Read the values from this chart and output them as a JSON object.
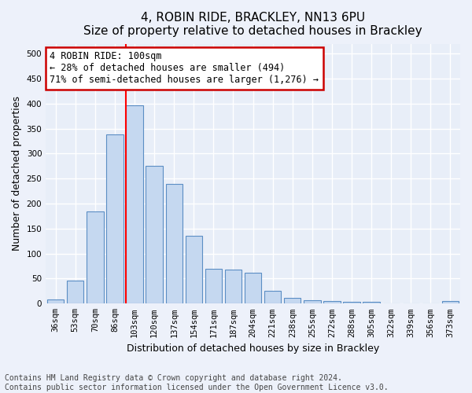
{
  "title": "4, ROBIN RIDE, BRACKLEY, NN13 6PU",
  "subtitle": "Size of property relative to detached houses in Brackley",
  "xlabel": "Distribution of detached houses by size in Brackley",
  "ylabel": "Number of detached properties",
  "categories": [
    "36sqm",
    "53sqm",
    "70sqm",
    "86sqm",
    "103sqm",
    "120sqm",
    "137sqm",
    "154sqm",
    "171sqm",
    "187sqm",
    "204sqm",
    "221sqm",
    "238sqm",
    "255sqm",
    "272sqm",
    "288sqm",
    "305sqm",
    "322sqm",
    "339sqm",
    "356sqm",
    "373sqm"
  ],
  "values": [
    9,
    46,
    185,
    338,
    397,
    275,
    239,
    136,
    69,
    68,
    62,
    25,
    11,
    7,
    5,
    4,
    4,
    0,
    0,
    0,
    5
  ],
  "bar_color": "#c5d8f0",
  "bar_edge_color": "#5b8ec4",
  "red_line_bar_index": 4,
  "annotation_text": "4 ROBIN RIDE: 100sqm\n← 28% of detached houses are smaller (494)\n71% of semi-detached houses are larger (1,276) →",
  "annotation_box_facecolor": "#ffffff",
  "annotation_box_edgecolor": "#cc0000",
  "ylim": [
    0,
    520
  ],
  "yticks": [
    0,
    50,
    100,
    150,
    200,
    250,
    300,
    350,
    400,
    450,
    500
  ],
  "plot_bg_color": "#e8eef8",
  "fig_bg_color": "#edf1fa",
  "grid_color": "#ffffff",
  "footer_text": "Contains HM Land Registry data © Crown copyright and database right 2024.\nContains public sector information licensed under the Open Government Licence v3.0.",
  "title_fontsize": 11,
  "xlabel_fontsize": 9,
  "ylabel_fontsize": 9,
  "tick_fontsize": 7.5,
  "annotation_fontsize": 8.5,
  "footer_fontsize": 7
}
